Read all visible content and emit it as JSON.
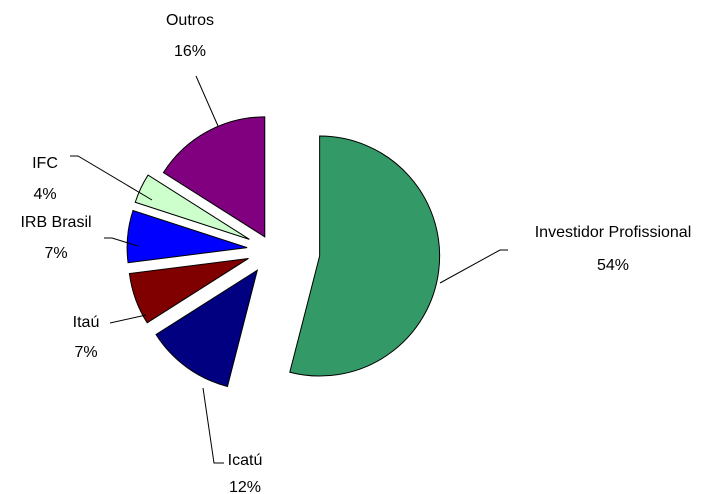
{
  "chart_data": {
    "type": "pie",
    "categories": [
      "Investidor Profissional",
      "Icatú",
      "Itaú",
      "IRB Brasil",
      "IFC",
      "Outros"
    ],
    "values": [
      54,
      12,
      7,
      7,
      4,
      16
    ],
    "value_labels": [
      "54%",
      "12%",
      "7%",
      "7%",
      "4%",
      "16%"
    ],
    "colors": [
      "#339966",
      "#000080",
      "#800000",
      "#0000ff",
      "#ccffcc",
      "#800080"
    ]
  }
}
